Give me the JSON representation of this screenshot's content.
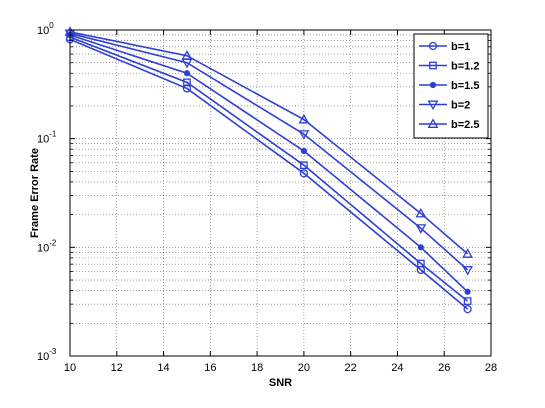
{
  "chart_data": {
    "type": "line",
    "title": "",
    "xlabel": "SNR",
    "ylabel": "Frame Error Rate",
    "xlim": [
      10,
      28
    ],
    "ylim": [
      0.001,
      1
    ],
    "yscale": "log",
    "grid": true,
    "legend_position": "top-right",
    "line_color": "#2e3fd6",
    "x_ticks": [
      10,
      12,
      14,
      16,
      18,
      20,
      22,
      24,
      26,
      28
    ],
    "x_tick_labels": [
      "10",
      "12",
      "14",
      "16",
      "18",
      "20",
      "22",
      "24",
      "26",
      "28"
    ],
    "y_ticks": [
      {
        "value": 1,
        "base": "10",
        "exp": "0"
      },
      {
        "value": 0.1,
        "base": "10",
        "exp": "-1"
      },
      {
        "value": 0.01,
        "base": "10",
        "exp": "-2"
      },
      {
        "value": 0.001,
        "base": "10",
        "exp": "-3"
      }
    ],
    "x": [
      10,
      15,
      20,
      25,
      27
    ],
    "series": [
      {
        "name": "b=1",
        "marker": "circle",
        "values": [
          0.82,
          0.29,
          0.048,
          0.0062,
          0.0027
        ]
      },
      {
        "name": "b=1.2",
        "marker": "square",
        "values": [
          0.86,
          0.33,
          0.057,
          0.0071,
          0.0032
        ]
      },
      {
        "name": "b=1.5",
        "marker": "dot",
        "values": [
          0.9,
          0.4,
          0.077,
          0.01,
          0.0039
        ]
      },
      {
        "name": "b=2",
        "marker": "triangle-down",
        "values": [
          0.93,
          0.5,
          0.11,
          0.015,
          0.0062
        ]
      },
      {
        "name": "b=2.5",
        "marker": "triangle-up",
        "values": [
          0.96,
          0.58,
          0.15,
          0.0205,
          0.0087
        ]
      }
    ]
  }
}
